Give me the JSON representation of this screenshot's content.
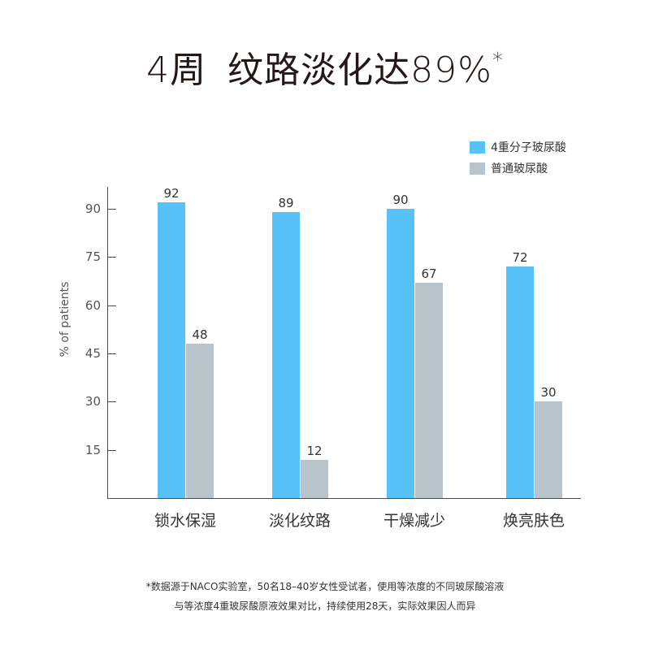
{
  "header": {
    "title_part1": "4周",
    "title_part2": "纹路淡化达89%",
    "title_mark": "*"
  },
  "colors": {
    "series1": "#56c2f7",
    "series2": "#b9c4ca",
    "axis": "#4a4a4a"
  },
  "legend": [
    {
      "label": "4重分子玻尿酸",
      "color": "#56c2f7"
    },
    {
      "label": "普通玻尿酸",
      "color": "#b9c4ca"
    }
  ],
  "axis": {
    "ylabel": "% of patients",
    "yticks": [
      "90",
      "75",
      "60",
      "45",
      "30",
      "15"
    ]
  },
  "footnote": {
    "line1": "*数据源于NACO实验室，50名18–40岁女性受试者，使用等浓度的不同玻尿酸溶液",
    "line2": "与等浓度4重玻尿酸原液效果对比，持续使用28天，实际效果因人而异"
  },
  "chart_data": {
    "type": "bar",
    "title": "4周 纹路淡化达89%*",
    "xlabel": "",
    "ylabel": "% of patients",
    "categories": [
      "锁水保湿",
      "淡化纹路",
      "干燥减少",
      "焕亮肤色"
    ],
    "series": [
      {
        "name": "4重分子玻尿酸",
        "values": [
          92,
          89,
          90,
          72
        ],
        "labels": [
          "92",
          "89",
          "90",
          "72"
        ]
      },
      {
        "name": "普通玻尿酸",
        "values": [
          48,
          12,
          67,
          30
        ],
        "labels": [
          "48",
          "12",
          "67",
          "30"
        ]
      }
    ],
    "ylim": [
      0,
      97
    ],
    "yticks": [
      15,
      30,
      45,
      60,
      75,
      90
    ],
    "grid": false,
    "legend_position": "top-right"
  }
}
